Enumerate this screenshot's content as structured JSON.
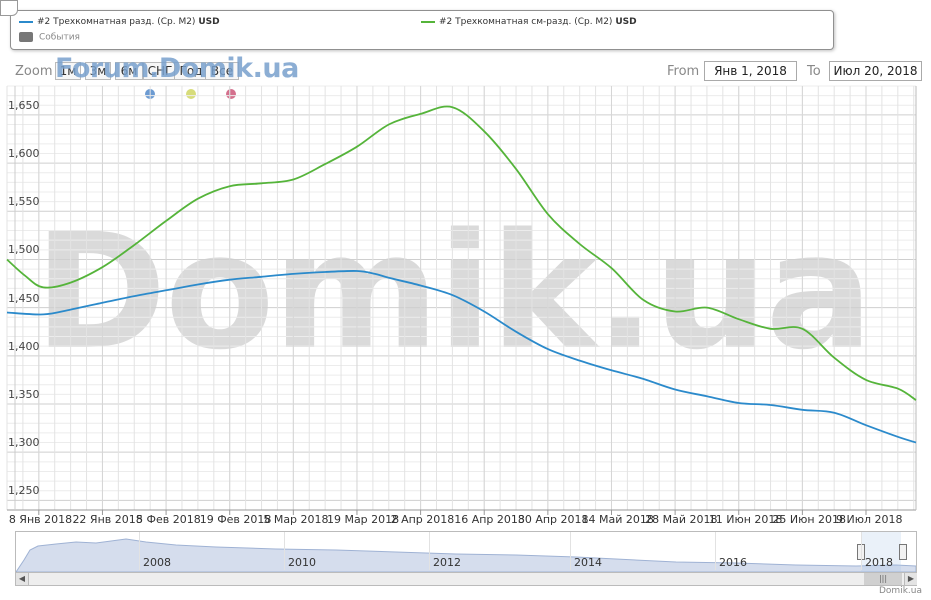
{
  "legend": {
    "series1_name": "#2 Трехкомнатная разд. (Ср. М2)",
    "series2_name": "#2 Трехкомнатная см-разд. (Ср. М2)",
    "currency": "USD",
    "events_label": "События"
  },
  "range_selector": {
    "zoom_label": "Zoom",
    "buttons": [
      "1м",
      "3м",
      "6м",
      "СНГ",
      "Год",
      "Все"
    ],
    "from_label": "From",
    "from_value": "Янв 1, 2018",
    "to_label": "To",
    "to_value": "Июл 20, 2018"
  },
  "watermark": {
    "main": "Domik.ua",
    "forum": "Forum.Domik.ua",
    "credit": "Domik.ua"
  },
  "flag_colors": [
    "#6c9bd2",
    "#d7dc7a",
    "#d4708d"
  ],
  "colors": {
    "series1": "#2b8acb",
    "series2": "#55b43a",
    "grid": "#d8d8d8",
    "watermark": "#d9d9d9"
  },
  "chart_data": {
    "type": "line",
    "x_tick_labels": [
      "8 Янв 2018",
      "22 Янв 2018",
      "5 Фев 2018",
      "19 Фев 2018",
      "5 Мар 2018",
      "19 Мар 2018",
      "2 Апр 2018",
      "16 Апр 2018",
      "30 Апр 2018",
      "14 Май 2018",
      "28 Май 2018",
      "11 Июн 2018",
      "25 Июн 2018",
      "9 Июл 2018"
    ],
    "x_range": [
      "2018-01-01",
      "2018-07-20"
    ],
    "y_ticks": [
      1250,
      1300,
      1350,
      1400,
      1450,
      1500,
      1550,
      1600,
      1650
    ],
    "y_tick_labels": [
      "1,250",
      "1,300",
      "1,350",
      "1,400",
      "1,450",
      "1,500",
      "1,550",
      "1,600",
      "1,650"
    ],
    "ylim": [
      1240,
      1680
    ],
    "grid": true,
    "series": [
      {
        "name": "#2 Трехкомнатная разд. (Ср. М2)",
        "color": "#2b8acb",
        "points": [
          [
            "2018-01-01",
            1445
          ],
          [
            "2018-01-09",
            1443
          ],
          [
            "2018-01-15",
            1448
          ],
          [
            "2018-01-22",
            1455
          ],
          [
            "2018-01-29",
            1462
          ],
          [
            "2018-02-05",
            1468
          ],
          [
            "2018-02-12",
            1474
          ],
          [
            "2018-02-19",
            1479
          ],
          [
            "2018-02-26",
            1482
          ],
          [
            "2018-03-05",
            1485
          ],
          [
            "2018-03-12",
            1487
          ],
          [
            "2018-03-19",
            1488
          ],
          [
            "2018-03-23",
            1485
          ],
          [
            "2018-03-26",
            1481
          ],
          [
            "2018-04-02",
            1473
          ],
          [
            "2018-04-09",
            1463
          ],
          [
            "2018-04-16",
            1446
          ],
          [
            "2018-04-23",
            1425
          ],
          [
            "2018-04-30",
            1407
          ],
          [
            "2018-05-07",
            1395
          ],
          [
            "2018-05-14",
            1385
          ],
          [
            "2018-05-21",
            1376
          ],
          [
            "2018-05-28",
            1365
          ],
          [
            "2018-06-04",
            1358
          ],
          [
            "2018-06-11",
            1351
          ],
          [
            "2018-06-18",
            1349
          ],
          [
            "2018-06-25",
            1344
          ],
          [
            "2018-07-02",
            1341
          ],
          [
            "2018-07-09",
            1328
          ],
          [
            "2018-07-16",
            1316
          ],
          [
            "2018-07-20",
            1310
          ]
        ]
      },
      {
        "name": "#2 Трехкомнатная см-разд. (Ср. М2)",
        "color": "#55b43a",
        "points": [
          [
            "2018-01-01",
            1500
          ],
          [
            "2018-01-05",
            1483
          ],
          [
            "2018-01-09",
            1471
          ],
          [
            "2018-01-15",
            1476
          ],
          [
            "2018-01-22",
            1492
          ],
          [
            "2018-01-29",
            1515
          ],
          [
            "2018-02-05",
            1540
          ],
          [
            "2018-02-12",
            1563
          ],
          [
            "2018-02-19",
            1576
          ],
          [
            "2018-02-26",
            1579
          ],
          [
            "2018-03-05",
            1583
          ],
          [
            "2018-03-12",
            1599
          ],
          [
            "2018-03-19",
            1617
          ],
          [
            "2018-03-26",
            1640
          ],
          [
            "2018-04-02",
            1651
          ],
          [
            "2018-04-09",
            1658
          ],
          [
            "2018-04-16",
            1633
          ],
          [
            "2018-04-23",
            1594
          ],
          [
            "2018-04-30",
            1547
          ],
          [
            "2018-05-07",
            1516
          ],
          [
            "2018-05-14",
            1491
          ],
          [
            "2018-05-21",
            1458
          ],
          [
            "2018-05-28",
            1446
          ],
          [
            "2018-06-04",
            1450
          ],
          [
            "2018-06-11",
            1438
          ],
          [
            "2018-06-18",
            1428
          ],
          [
            "2018-06-25",
            1428
          ],
          [
            "2018-07-02",
            1398
          ],
          [
            "2018-07-09",
            1375
          ],
          [
            "2018-07-16",
            1366
          ],
          [
            "2018-07-20",
            1354
          ]
        ]
      }
    ],
    "navigator": {
      "tick_labels": [
        "2008",
        "2010",
        "2012",
        "2014",
        "2016",
        "2018"
      ]
    }
  }
}
